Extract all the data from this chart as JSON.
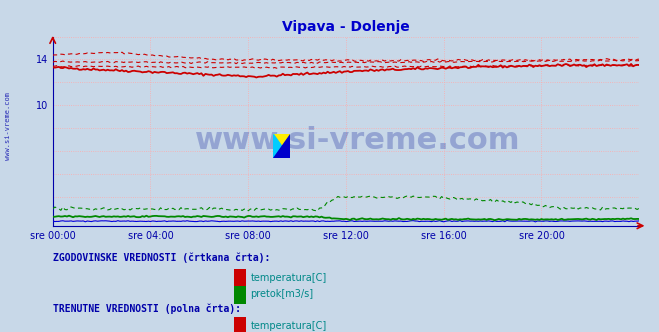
{
  "title": "Vipava - Dolenje",
  "title_color": "#0000cc",
  "bg_color": "#c8d8e8",
  "plot_bg_color": "#c8d8e8",
  "grid_color_h": "#ffaaaa",
  "grid_color_v": "#ffaaaa",
  "xlim": [
    0,
    288
  ],
  "ylim": [
    -0.5,
    16
  ],
  "yticks": [
    10,
    14
  ],
  "xtick_labels": [
    "sre 00:00",
    "sre 04:00",
    "sre 08:00",
    "sre 12:00",
    "sre 16:00",
    "sre 20:00"
  ],
  "xtick_positions": [
    0,
    48,
    96,
    144,
    192,
    240
  ],
  "tick_color": "#0000aa",
  "temp_solid_color": "#cc0000",
  "temp_dashed_color": "#cc0000",
  "flow_solid_color": "#008800",
  "flow_dashed_color": "#008800",
  "height_color": "#0000dd",
  "arrow_color": "#cc0000",
  "watermark": "www.si-vreme.com",
  "watermark_color": "#3344aa",
  "side_label": "www.si-vreme.com",
  "side_label_color": "#0000aa",
  "legend_header_color": "#0000aa",
  "legend_text_color": "#008888",
  "legend1_header": "ZGODOVINSKE VREDNOSTI (črtkana črta):",
  "legend2_header": "TRENUTNE VREDNOSTI (polna črta):",
  "legend_items": [
    "temperatura[C]",
    "pretok[m3/s]"
  ],
  "legend_colors_temp": "#cc0000",
  "legend_colors_flow": "#008800"
}
